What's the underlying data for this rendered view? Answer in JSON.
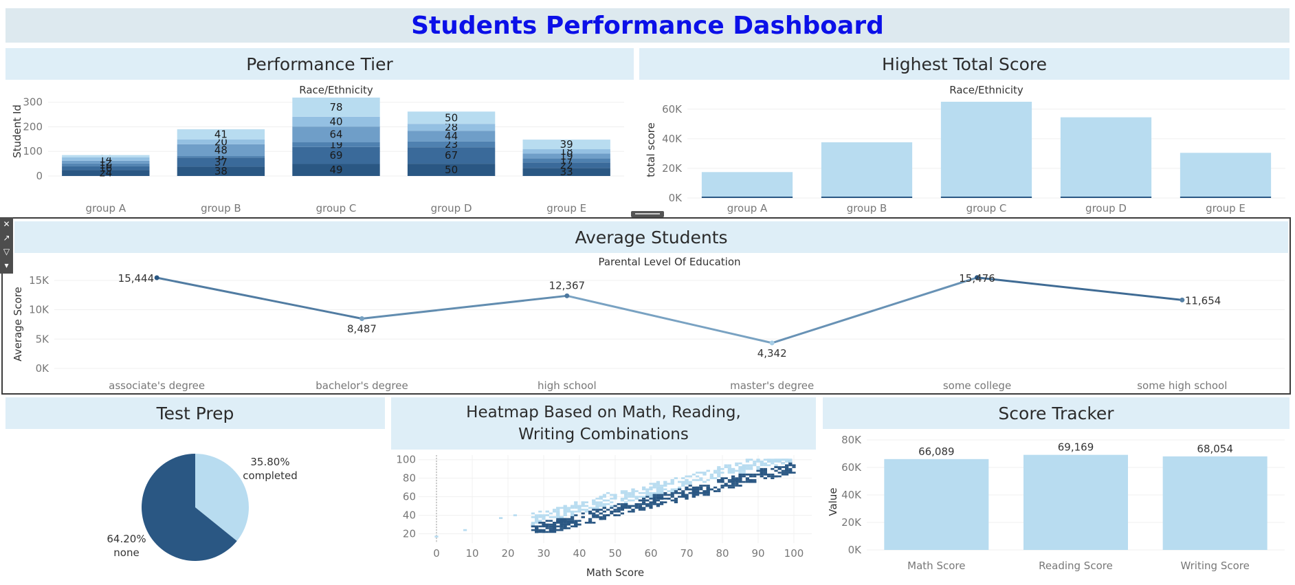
{
  "dashboard_title": "Students Performance Dashboard",
  "colors": {
    "light": "#b8dcf0",
    "dark": "#2a5783",
    "title_blue": "#0b10e8",
    "panel_bg": "#deeef7"
  },
  "panels": {
    "performance_tier": "Performance Tier",
    "highest_total_score": "Highest Total Score",
    "average_students": "Average Students",
    "test_prep": "Test Prep",
    "heatmap": "Heatmap Based on Math, Reading, Writing Combinations",
    "score_tracker": "Score Tracker"
  },
  "toolbar": {
    "icons": [
      "close-icon",
      "popout-icon",
      "filter-icon",
      "more-icon"
    ]
  },
  "chart_data": [
    {
      "id": "performance_tier",
      "type": "bar",
      "stacked": true,
      "title": "Race/Ethnicity",
      "xlabel": "",
      "ylabel": "Student Id",
      "categories": [
        "group A",
        "group B",
        "group C",
        "group D",
        "group E"
      ],
      "ylim": [
        0,
        330
      ],
      "yticks": [
        0,
        100,
        200,
        300
      ],
      "segments": [
        [
          24,
          16,
          10,
          12,
          14,
          9
        ],
        [
          38,
          37,
          6,
          48,
          20,
          41
        ],
        [
          49,
          69,
          19,
          64,
          40,
          78
        ],
        [
          50,
          67,
          23,
          44,
          28,
          50
        ],
        [
          33,
          22,
          17,
          19,
          18,
          39
        ]
      ],
      "segment_labels": [
        [
          "24",
          "16",
          "10",
          "12",
          "14",
          ""
        ],
        [
          "38",
          "37",
          "6",
          "48",
          "20",
          "41"
        ],
        [
          "49",
          "69",
          "19",
          "64",
          "40",
          "78"
        ],
        [
          "50",
          "67",
          "23",
          "44",
          "28",
          "50"
        ],
        [
          "33",
          "22",
          "17",
          "19",
          "18",
          "39"
        ]
      ],
      "segment_colors": [
        "#2a5783",
        "#3a6a9a",
        "#4f81b0",
        "#6f9ec8",
        "#94c0e2",
        "#b8dcf0"
      ]
    },
    {
      "id": "highest_total_score",
      "type": "bar",
      "title": "Race/Ethnicity",
      "xlabel": "",
      "ylabel": "total score",
      "categories": [
        "group A",
        "group B",
        "group C",
        "group D",
        "group E"
      ],
      "values": [
        17500,
        37600,
        65000,
        54500,
        30500
      ],
      "ylim": [
        0,
        65000
      ],
      "yticks": [
        0,
        20000,
        40000,
        60000
      ],
      "ytick_labels": [
        "0K",
        "20K",
        "40K",
        "60K"
      ]
    },
    {
      "id": "average_students",
      "type": "line",
      "title": "Parental Level Of Education",
      "xlabel": "",
      "ylabel": "Average Score",
      "categories": [
        "associate's degree",
        "bachelor's degree",
        "high school",
        "master's degree",
        "some college",
        "some high school"
      ],
      "values": [
        15444,
        8487,
        12367,
        4342,
        15476,
        11654
      ],
      "labels": [
        "15,444",
        "8,487",
        "12,367",
        "4,342",
        "15,476",
        "11,654"
      ],
      "ylim": [
        0,
        16500
      ],
      "yticks": [
        0,
        5000,
        10000,
        15000
      ],
      "ytick_labels": [
        "0K",
        "5K",
        "10K",
        "15K"
      ]
    },
    {
      "id": "test_prep",
      "type": "pie",
      "slices": [
        {
          "name": "completed",
          "value": 35.8,
          "label": "35.80%"
        },
        {
          "name": "none",
          "value": 64.2,
          "label": "64.20%"
        }
      ]
    },
    {
      "id": "heatmap",
      "type": "heatmap",
      "xlabel": "Math Score",
      "ylabel": "",
      "xlim": [
        -5,
        105
      ],
      "ylim": [
        10,
        105
      ],
      "xticks": [
        0,
        10,
        20,
        30,
        40,
        50,
        60,
        70,
        80,
        90,
        100
      ],
      "yticks": [
        20,
        40,
        60,
        80,
        100
      ]
    },
    {
      "id": "score_tracker",
      "type": "bar",
      "xlabel": "",
      "ylabel": "Value",
      "categories": [
        "Math Score",
        "Reading Score",
        "Writing Score"
      ],
      "values": [
        66089,
        69169,
        68054
      ],
      "labels": [
        "66,089",
        "69,169",
        "68,054"
      ],
      "ylim": [
        0,
        80000
      ],
      "yticks": [
        0,
        20000,
        40000,
        60000,
        80000
      ],
      "ytick_labels": [
        "0K",
        "20K",
        "40K",
        "60K",
        "80K"
      ]
    }
  ]
}
